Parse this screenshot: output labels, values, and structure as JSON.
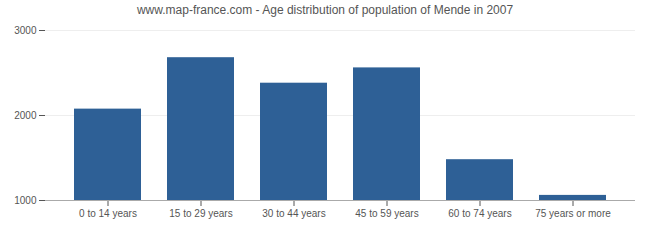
{
  "chart_data": {
    "type": "bar",
    "title": "www.map-france.com - Age distribution of population of Mende in 2007",
    "categories": [
      "0 to 14 years",
      "15 to 29 years",
      "30 to 44 years",
      "45 to 59 years",
      "60 to 74 years",
      "75 years or more"
    ],
    "values": [
      2075,
      2680,
      2380,
      2560,
      1480,
      1060
    ],
    "color": "#2e6096",
    "ylim": [
      1000,
      3000
    ],
    "yticks": [
      1000,
      2000,
      3000
    ],
    "grid": true
  }
}
